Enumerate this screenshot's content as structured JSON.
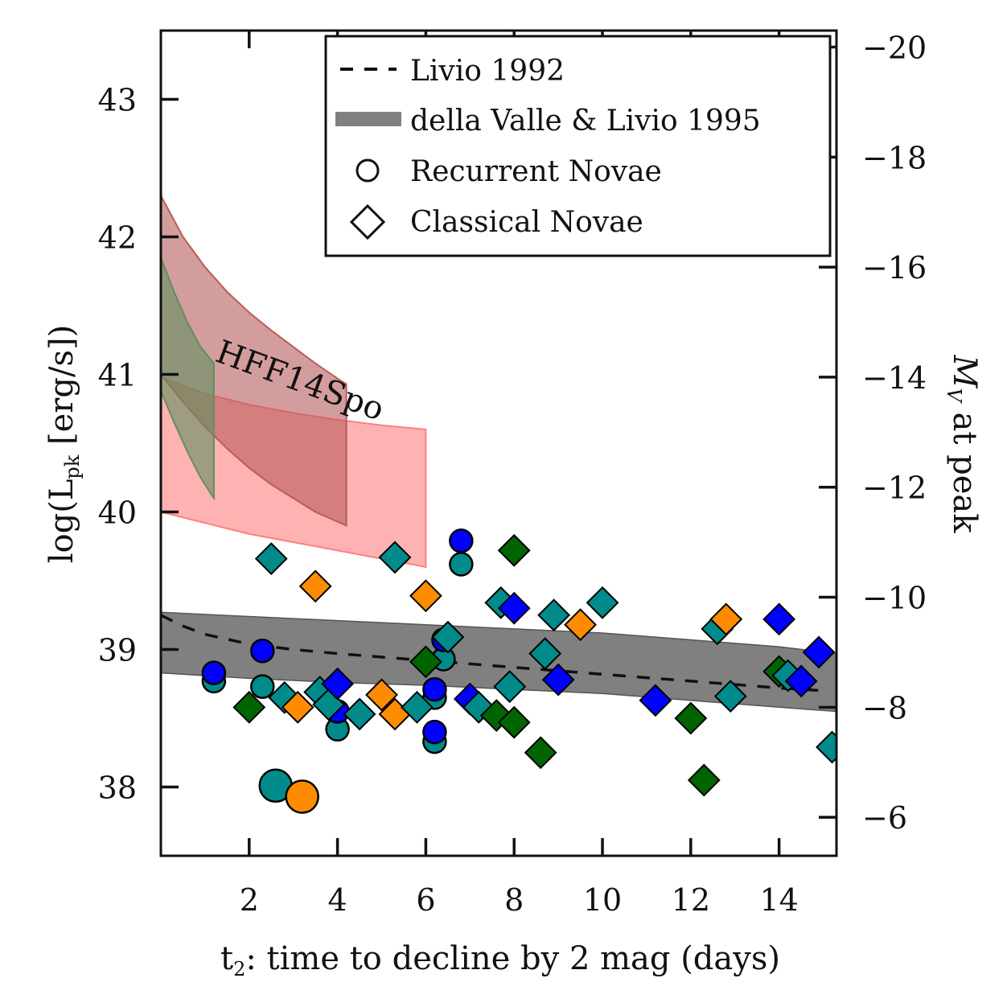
{
  "chart_data": {
    "type": "scatter",
    "xlabel_main": "t",
    "xlabel_sub": "2",
    "xlabel_rest": ": time to decline by 2 mag (days)",
    "ylabel_main": "log(L",
    "ylabel_sub": "pk",
    "ylabel_rest": " [erg/s])",
    "y2label_main": "M",
    "y2label_sub": "V",
    "y2label_rest": " at peak",
    "xlim": [
      0,
      15.3
    ],
    "ylim": [
      37.5,
      43.5
    ],
    "y2lim": [
      -5.3,
      -20.3
    ],
    "xticks": [
      2,
      4,
      6,
      8,
      10,
      12,
      14
    ],
    "yticks": [
      38,
      39,
      40,
      41,
      42,
      43
    ],
    "y2ticks": [
      -6,
      -8,
      -10,
      -12,
      -14,
      -16,
      -18,
      -20
    ],
    "annotation": {
      "text": "HFF14Spo",
      "x": 1.2,
      "y": 41.1
    },
    "legend": {
      "placement": "top-right",
      "entries": [
        {
          "label": "Livio 1992",
          "marker": "dashed-line"
        },
        {
          "label": "della Valle & Livio 1995",
          "marker": "thick-gray-line"
        },
        {
          "label": "Recurrent Novae",
          "marker": "circle"
        },
        {
          "label": "Classical Novae",
          "marker": "diamond"
        }
      ]
    },
    "colors": {
      "teal": "#008b8b",
      "blue": "#0000ff",
      "green": "#006400",
      "orange": "#ff8c00",
      "band_gray": "#808080",
      "region_red": "#ff7f7f",
      "region_brown": "#b85c5c",
      "region_green": "#5f8f5f"
    },
    "series": [
      {
        "name": "della Valle & Livio 1995",
        "kind": "band",
        "x": [
          0,
          2,
          4,
          6,
          8,
          10,
          12,
          14,
          15.3
        ],
        "upper": [
          39.27,
          39.24,
          39.21,
          39.18,
          39.15,
          39.12,
          39.07,
          39.02,
          38.97
        ],
        "lower": [
          38.83,
          38.79,
          38.76,
          38.74,
          38.71,
          38.68,
          38.63,
          38.58,
          38.55
        ]
      },
      {
        "name": "Livio 1992",
        "kind": "dashed",
        "x": [
          0,
          0.5,
          1,
          2,
          3,
          4,
          6,
          8,
          10,
          12,
          14,
          15
        ],
        "y": [
          39.25,
          39.17,
          39.11,
          39.04,
          39.0,
          38.97,
          38.92,
          38.87,
          38.82,
          38.77,
          38.72,
          38.7
        ]
      },
      {
        "kind": "region",
        "color_key": "region_red",
        "x": [
          0,
          1,
          2,
          3,
          4,
          5,
          6
        ],
        "upper": [
          40.98,
          40.86,
          40.78,
          40.72,
          40.67,
          40.63,
          40.6
        ],
        "lower": [
          40.0,
          39.92,
          39.84,
          39.78,
          39.72,
          39.66,
          39.6
        ]
      },
      {
        "kind": "region",
        "color_key": "region_brown",
        "x": [
          0,
          0.5,
          1,
          1.5,
          2,
          2.5,
          3,
          3.5,
          4,
          4.2
        ],
        "upper": [
          42.3,
          42.0,
          41.78,
          41.6,
          41.45,
          41.32,
          41.2,
          41.08,
          40.97,
          40.93
        ],
        "lower": [
          41.0,
          40.8,
          40.62,
          40.46,
          40.32,
          40.2,
          40.1,
          40.0,
          39.93,
          39.9
        ]
      },
      {
        "kind": "region",
        "color_key": "region_green",
        "x": [
          0,
          0.3,
          0.6,
          0.9,
          1.2
        ],
        "upper": [
          41.85,
          41.6,
          41.38,
          41.2,
          41.08
        ],
        "lower": [
          40.88,
          40.65,
          40.44,
          40.25,
          40.1
        ]
      },
      {
        "name": "Recurrent Novae",
        "kind": "points",
        "marker": "circle",
        "points": [
          {
            "x": 1.2,
            "y": 38.77,
            "c": "teal"
          },
          {
            "x": 1.2,
            "y": 38.83,
            "c": "blue"
          },
          {
            "x": 2.3,
            "y": 38.99,
            "c": "blue"
          },
          {
            "x": 2.3,
            "y": 38.73,
            "c": "teal"
          },
          {
            "x": 2.6,
            "y": 38.01,
            "c": "teal",
            "big": true
          },
          {
            "x": 3.2,
            "y": 37.93,
            "c": "orange",
            "big": true
          },
          {
            "x": 4.0,
            "y": 38.42,
            "c": "teal"
          },
          {
            "x": 4.0,
            "y": 38.55,
            "c": "blue"
          },
          {
            "x": 6.2,
            "y": 38.33,
            "c": "teal"
          },
          {
            "x": 6.2,
            "y": 38.4,
            "c": "blue"
          },
          {
            "x": 6.2,
            "y": 38.65,
            "c": "teal"
          },
          {
            "x": 6.2,
            "y": 38.71,
            "c": "blue"
          },
          {
            "x": 6.4,
            "y": 38.93,
            "c": "teal"
          },
          {
            "x": 6.4,
            "y": 39.07,
            "c": "blue"
          },
          {
            "x": 6.8,
            "y": 39.62,
            "c": "teal"
          },
          {
            "x": 6.8,
            "y": 39.79,
            "c": "blue"
          }
        ]
      },
      {
        "name": "Classical Novae",
        "kind": "points",
        "marker": "diamond",
        "points": [
          {
            "x": 2.0,
            "y": 38.58,
            "c": "green"
          },
          {
            "x": 2.5,
            "y": 39.66,
            "c": "teal"
          },
          {
            "x": 2.8,
            "y": 38.65,
            "c": "teal"
          },
          {
            "x": 3.1,
            "y": 38.58,
            "c": "orange"
          },
          {
            "x": 3.5,
            "y": 39.46,
            "c": "orange"
          },
          {
            "x": 3.6,
            "y": 38.69,
            "c": "teal"
          },
          {
            "x": 3.8,
            "y": 38.6,
            "c": "teal"
          },
          {
            "x": 4.0,
            "y": 38.75,
            "c": "blue"
          },
          {
            "x": 4.5,
            "y": 38.53,
            "c": "teal"
          },
          {
            "x": 5.0,
            "y": 38.67,
            "c": "orange"
          },
          {
            "x": 5.3,
            "y": 38.53,
            "c": "orange"
          },
          {
            "x": 5.3,
            "y": 39.67,
            "c": "teal"
          },
          {
            "x": 5.8,
            "y": 38.58,
            "c": "teal"
          },
          {
            "x": 6.0,
            "y": 38.91,
            "c": "green"
          },
          {
            "x": 6.0,
            "y": 39.39,
            "c": "orange"
          },
          {
            "x": 6.5,
            "y": 39.09,
            "c": "teal"
          },
          {
            "x": 7.0,
            "y": 38.64,
            "c": "blue"
          },
          {
            "x": 7.2,
            "y": 38.58,
            "c": "teal"
          },
          {
            "x": 7.6,
            "y": 38.52,
            "c": "green"
          },
          {
            "x": 7.7,
            "y": 39.34,
            "c": "teal"
          },
          {
            "x": 7.9,
            "y": 38.73,
            "c": "teal"
          },
          {
            "x": 8.0,
            "y": 39.3,
            "c": "blue"
          },
          {
            "x": 8.0,
            "y": 39.72,
            "c": "green"
          },
          {
            "x": 8.0,
            "y": 38.47,
            "c": "green"
          },
          {
            "x": 8.6,
            "y": 38.25,
            "c": "green"
          },
          {
            "x": 8.7,
            "y": 38.97,
            "c": "teal"
          },
          {
            "x": 8.9,
            "y": 39.25,
            "c": "teal"
          },
          {
            "x": 9.0,
            "y": 38.78,
            "c": "blue"
          },
          {
            "x": 9.5,
            "y": 39.18,
            "c": "orange"
          },
          {
            "x": 10.0,
            "y": 39.34,
            "c": "teal"
          },
          {
            "x": 11.2,
            "y": 38.63,
            "c": "blue"
          },
          {
            "x": 12.0,
            "y": 38.5,
            "c": "green"
          },
          {
            "x": 12.3,
            "y": 38.05,
            "c": "green"
          },
          {
            "x": 12.6,
            "y": 39.15,
            "c": "teal"
          },
          {
            "x": 12.8,
            "y": 39.22,
            "c": "orange"
          },
          {
            "x": 12.9,
            "y": 38.66,
            "c": "teal"
          },
          {
            "x": 14.0,
            "y": 39.22,
            "c": "blue"
          },
          {
            "x": 14.0,
            "y": 38.84,
            "c": "green"
          },
          {
            "x": 14.2,
            "y": 38.81,
            "c": "teal"
          },
          {
            "x": 14.5,
            "y": 38.77,
            "c": "blue"
          },
          {
            "x": 14.9,
            "y": 38.98,
            "c": "blue"
          },
          {
            "x": 15.2,
            "y": 38.29,
            "c": "teal"
          }
        ]
      }
    ]
  }
}
